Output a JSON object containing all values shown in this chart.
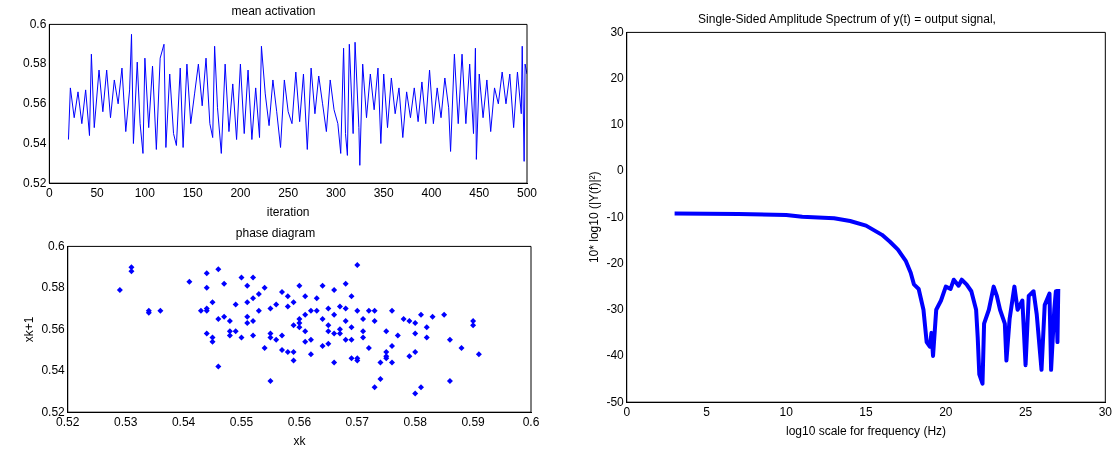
{
  "chart_data": [
    {
      "type": "line",
      "title": "mean activation",
      "xlabel": "iteration",
      "xlim": [
        0,
        500
      ],
      "xticks": [
        0,
        50,
        100,
        150,
        200,
        250,
        300,
        350,
        400,
        450,
        500
      ],
      "ylim": [
        0.52,
        0.6
      ],
      "yticks": [
        0.52,
        0.54,
        0.56,
        0.58,
        0.6
      ],
      "grid": false,
      "legend": false,
      "marker": "none",
      "series": [
        {
          "color": "#0000ff",
          "x": [
            20,
            22,
            26,
            30,
            34,
            38,
            42,
            44,
            47,
            52,
            56,
            60,
            64,
            68,
            72,
            76,
            80,
            84,
            86,
            88,
            92,
            95,
            98,
            100,
            104,
            108,
            112,
            116,
            120,
            122,
            126,
            130,
            133,
            137,
            140,
            144,
            148,
            152,
            156,
            160,
            164,
            168,
            171,
            173,
            176,
            180,
            184,
            188,
            192,
            196,
            200,
            204,
            208,
            212,
            216,
            220,
            222,
            226,
            230,
            234,
            238,
            242,
            246,
            250,
            254,
            258,
            262,
            266,
            270,
            274,
            278,
            282,
            286,
            290,
            294,
            298,
            302,
            305,
            308,
            310,
            312,
            314,
            318,
            320,
            324,
            325,
            328,
            332,
            336,
            340,
            344,
            347,
            350,
            354,
            358,
            362,
            366,
            370,
            374,
            378,
            382,
            386,
            390,
            394,
            398,
            402,
            406,
            410,
            414,
            418,
            420,
            424,
            428,
            432,
            436,
            440,
            444,
            446,
            447,
            450,
            454,
            458,
            462,
            466,
            470,
            474,
            478,
            482,
            486,
            490,
            494,
            495,
            497,
            498,
            500
          ],
          "values": [
            0.542,
            0.568,
            0.553,
            0.566,
            0.55,
            0.567,
            0.544,
            0.585,
            0.548,
            0.577,
            0.556,
            0.577,
            0.553,
            0.572,
            0.56,
            0.578,
            0.546,
            0.567,
            0.595,
            0.54,
            0.581,
            0.55,
            0.535,
            0.583,
            0.548,
            0.579,
            0.537,
            0.583,
            0.59,
            0.538,
            0.575,
            0.545,
            0.539,
            0.578,
            0.538,
            0.58,
            0.55,
            0.565,
            0.58,
            0.559,
            0.583,
            0.55,
            0.543,
            0.589,
            0.558,
            0.535,
            0.58,
            0.546,
            0.57,
            0.542,
            0.58,
            0.545,
            0.577,
            0.542,
            0.568,
            0.543,
            0.589,
            0.565,
            0.549,
            0.572,
            0.556,
            0.538,
            0.572,
            0.556,
            0.55,
            0.576,
            0.551,
            0.575,
            0.537,
            0.578,
            0.555,
            0.574,
            0.56,
            0.546,
            0.572,
            0.557,
            0.55,
            0.535,
            0.588,
            0.545,
            0.534,
            0.59,
            0.545,
            0.591,
            0.548,
            0.529,
            0.58,
            0.553,
            0.575,
            0.557,
            0.578,
            0.54,
            0.575,
            0.548,
            0.573,
            0.555,
            0.568,
            0.543,
            0.566,
            0.553,
            0.568,
            0.551,
            0.571,
            0.55,
            0.577,
            0.55,
            0.568,
            0.553,
            0.573,
            0.558,
            0.536,
            0.585,
            0.55,
            0.585,
            0.55,
            0.58,
            0.545,
            0.588,
            0.532,
            0.575,
            0.553,
            0.572,
            0.546,
            0.568,
            0.56,
            0.576,
            0.56,
            0.575,
            0.548,
            0.576,
            0.555,
            0.589,
            0.531,
            0.58,
            0.575
          ]
        }
      ]
    },
    {
      "type": "scatter",
      "title": "phase diagram",
      "xlabel": "xk",
      "ylabel": "xk+1",
      "xlim": [
        0.52,
        0.6
      ],
      "xticks": [
        0.52,
        0.53,
        0.54,
        0.55,
        0.56,
        0.57,
        0.58,
        0.59,
        0.6
      ],
      "ylim": [
        0.52,
        0.6
      ],
      "yticks": [
        0.52,
        0.54,
        0.56,
        0.58,
        0.6
      ],
      "grid": false,
      "legend": false,
      "marker": "diamond",
      "series": [
        {
          "color": "#0000ff",
          "x": [
            0.529,
            0.531,
            0.531,
            0.534,
            0.534,
            0.536,
            0.541,
            0.543,
            0.544,
            0.544,
            0.544,
            0.544,
            0.544,
            0.545,
            0.545,
            0.545,
            0.546,
            0.546,
            0.547,
            0.546,
            0.547,
            0.548,
            0.548,
            0.548,
            0.549,
            0.549,
            0.55,
            0.55,
            0.551,
            0.551,
            0.551,
            0.551,
            0.552,
            0.552,
            0.552,
            0.552,
            0.553,
            0.553,
            0.554,
            0.554,
            0.555,
            0.555,
            0.555,
            0.555,
            0.556,
            0.556,
            0.557,
            0.557,
            0.557,
            0.558,
            0.558,
            0.558,
            0.559,
            0.559,
            0.559,
            0.559,
            0.56,
            0.56,
            0.56,
            0.56,
            0.561,
            0.561,
            0.561,
            0.561,
            0.562,
            0.562,
            0.562,
            0.563,
            0.563,
            0.564,
            0.564,
            0.564,
            0.565,
            0.565,
            0.565,
            0.565,
            0.566,
            0.566,
            0.566,
            0.566,
            0.567,
            0.567,
            0.567,
            0.568,
            0.568,
            0.568,
            0.568,
            0.569,
            0.569,
            0.569,
            0.569,
            0.57,
            0.57,
            0.57,
            0.57,
            0.571,
            0.571,
            0.571,
            0.572,
            0.572,
            0.573,
            0.573,
            0.573,
            0.574,
            0.574,
            0.575,
            0.575,
            0.575,
            0.575,
            0.576,
            0.576,
            0.576,
            0.577,
            0.578,
            0.579,
            0.579,
            0.58,
            0.58,
            0.58,
            0.58,
            0.581,
            0.581,
            0.582,
            0.582,
            0.583,
            0.585,
            0.586,
            0.586,
            0.588,
            0.59,
            0.59,
            0.591
          ],
          "values": [
            0.579,
            0.59,
            0.588,
            0.569,
            0.568,
            0.569,
            0.583,
            0.569,
            0.57,
            0.569,
            0.58,
            0.587,
            0.558,
            0.554,
            0.556,
            0.573,
            0.542,
            0.589,
            0.582,
            0.565,
            0.566,
            0.557,
            0.559,
            0.564,
            0.572,
            0.559,
            0.556,
            0.585,
            0.563,
            0.573,
            0.581,
            0.566,
            0.585,
            0.564,
            0.557,
            0.575,
            0.577,
            0.569,
            0.551,
            0.58,
            0.556,
            0.57,
            0.558,
            0.535,
            0.572,
            0.555,
            0.578,
            0.55,
            0.557,
            0.571,
            0.576,
            0.549,
            0.562,
            0.573,
            0.545,
            0.549,
            0.565,
            0.563,
            0.561,
            0.581,
            0.567,
            0.559,
            0.576,
            0.554,
            0.569,
            0.548,
            0.555,
            0.569,
            0.575,
            0.552,
            0.581,
            0.565,
            0.559,
            0.57,
            0.553,
            0.562,
            0.558,
            0.567,
            0.544,
            0.579,
            0.558,
            0.56,
            0.571,
            0.555,
            0.582,
            0.564,
            0.57,
            0.546,
            0.561,
            0.555,
            0.576,
            0.546,
            0.569,
            0.591,
            0.545,
            0.559,
            0.565,
            0.556,
            0.569,
            0.551,
            0.569,
            0.564,
            0.532,
            0.536,
            0.544,
            0.549,
            0.559,
            0.546,
            0.547,
            0.569,
            0.552,
            0.544,
            0.557,
            0.565,
            0.564,
            0.547,
            0.563,
            0.558,
            0.549,
            0.529,
            0.567,
            0.532,
            0.561,
            0.556,
            0.566,
            0.567,
            0.555,
            0.535,
            0.551,
            0.564,
            0.562,
            0.548
          ]
        }
      ]
    },
    {
      "type": "line",
      "title": "Single-Sided Amplitude Spectrum of y(t) = output signal,",
      "xlabel": "log10 scale for frequency (Hz)",
      "ylabel": "10* log10 (|Y(f)|²)",
      "xlim": [
        0,
        30
      ],
      "xticks": [
        0,
        5,
        10,
        15,
        20,
        25,
        30
      ],
      "ylim": [
        -50,
        30
      ],
      "yticks": [
        -50,
        -40,
        -30,
        -20,
        -10,
        0,
        10,
        20,
        30
      ],
      "grid": false,
      "legend": false,
      "marker": "none",
      "series": [
        {
          "color": "#0000ff",
          "x": [
            3,
            7,
            10,
            11,
            13,
            14,
            15,
            16,
            16.5,
            17,
            17.5,
            17.8,
            18,
            18.3,
            18.6,
            18.8,
            19,
            19.1,
            19.2,
            19.4,
            19.7,
            20,
            20.3,
            20.5,
            20.8,
            21,
            21.3,
            21.6,
            21.9,
            22,
            22.1,
            22.3,
            22.4,
            22.7,
            23,
            23.2,
            23.4,
            23.7,
            23.8,
            24,
            24.3,
            24.5,
            24.8,
            25,
            25.2,
            25.5,
            25.7,
            26,
            26.2,
            26.5,
            26.6,
            26.8,
            26.9,
            27,
            27.05
          ],
          "values": [
            -9.2,
            -9.3,
            -9.5,
            -9.9,
            -10.2,
            -10.8,
            -11.8,
            -13.8,
            -15.3,
            -17,
            -19.5,
            -22,
            -24.5,
            -25.5,
            -30,
            -37,
            -38,
            -35,
            -40,
            -30,
            -28,
            -25,
            -25.5,
            -23.5,
            -24.8,
            -23.5,
            -24.5,
            -26,
            -30,
            -36,
            -44,
            -46,
            -33,
            -30,
            -25,
            -27,
            -30,
            -33,
            -41,
            -32,
            -25,
            -30,
            -28,
            -42,
            -27,
            -26,
            -31,
            -43,
            -29,
            -26.5,
            -43,
            -30,
            -26,
            -37,
            -25.5
          ]
        }
      ]
    }
  ]
}
